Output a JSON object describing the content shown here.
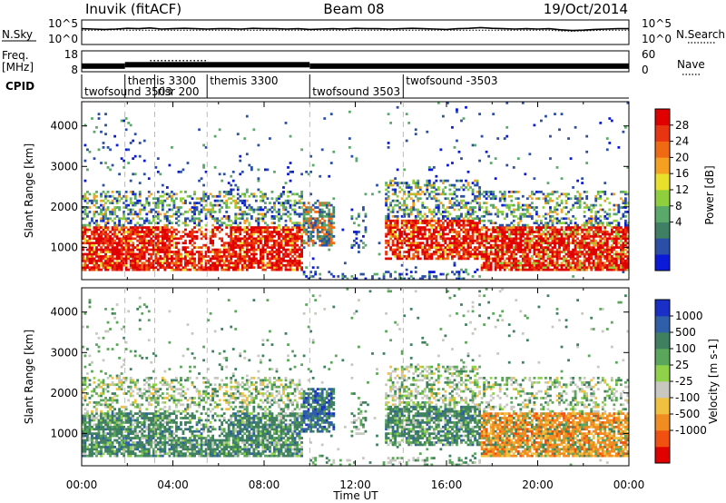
{
  "header": {
    "station": "Inuvik (fitACF)",
    "beam": "Beam 08",
    "date": "19/Oct/2014"
  },
  "chart_data": [
    {
      "type": "line",
      "name": "noise",
      "left_label": "N.Sky",
      "right_label": "N.Search",
      "left_ticks": [
        "10^5",
        "10^0"
      ],
      "right_ticks": [
        "10^5",
        "10^0"
      ],
      "x": [
        0,
        0.5,
        1,
        1.5,
        2,
        2.5,
        3,
        3.5,
        4,
        4.5,
        5,
        5.5,
        6,
        6.5,
        7,
        7.5,
        8,
        8.5,
        9,
        9.5,
        10,
        10.5,
        11,
        11.5,
        12,
        12.5,
        13,
        13.5,
        14,
        14.5,
        15,
        15.5,
        16,
        16.5,
        17,
        17.5,
        18,
        18.5,
        19,
        19.5,
        20,
        20.5,
        21,
        21.5,
        22,
        22.5,
        23,
        23.5,
        24
      ],
      "sky_log": [
        3.6,
        3.5,
        3.4,
        3.5,
        3.7,
        3.6,
        3.8,
        3.5,
        3.6,
        3.7,
        3.6,
        3.5,
        3.6,
        3.6,
        3.5,
        3.7,
        3.6,
        3.6,
        3.5,
        3.6,
        3.4,
        3.5,
        3.6,
        3.5,
        3.7,
        3.6,
        3.6,
        3.5,
        3.6,
        3.7,
        3.6,
        3.5,
        3.4,
        3.6,
        3.7,
        3.9,
        3.7,
        3.6,
        3.5,
        3.6,
        3.5,
        3.6,
        3.3,
        3.1,
        3.2,
        3.4,
        3.5,
        3.6,
        3.6
      ],
      "search_log": [
        3.2,
        3.2,
        3.2,
        3.3,
        3.2,
        3.2,
        3.2,
        3.2,
        3.2,
        3.2,
        3.2,
        3.2,
        3.2,
        3.2,
        3.2,
        3.2,
        3.2,
        3.2,
        3.2,
        3.2,
        3.2,
        3.2,
        3.2,
        3.2,
        3.2,
        3.2,
        3.2,
        3.2,
        3.2,
        3.2,
        3.2,
        3.2,
        3.2,
        3.2,
        3.2,
        3.2,
        3.2,
        3.2,
        3.2,
        3.2,
        3.2,
        3.2,
        3.0,
        2.9,
        3.0,
        3.1,
        3.2,
        3.2,
        3.2
      ]
    },
    {
      "type": "line",
      "name": "frequency",
      "left_label": [
        "Freq.",
        "[MHz]"
      ],
      "right_label": "Nave",
      "left_ticks": [
        "18",
        "8"
      ],
      "right_ticks": [
        "60",
        "0"
      ],
      "ylim_freq": [
        8,
        18
      ],
      "ylim_nave": [
        0,
        60
      ],
      "freq_segments": [
        {
          "x0": 0.0,
          "x1": 1.9,
          "y": 10.5
        },
        {
          "x0": 1.9,
          "x1": 10.0,
          "y": 11.2
        },
        {
          "x0": 10.0,
          "x1": 24.0,
          "y": 10.5
        }
      ],
      "nave_segments": [
        {
          "x0": 3.0,
          "x1": 5.5,
          "y": 32
        }
      ]
    },
    {
      "type": "table",
      "name": "cpid",
      "label": "CPID",
      "modes": [
        {
          "start": 0.0,
          "end": 1.9,
          "label": "twofsound 3503",
          "row": 2
        },
        {
          "start": 1.9,
          "end": 3.2,
          "label": "themis 3300",
          "row": 1
        },
        {
          "start": 3.2,
          "end": 5.5,
          "label": "risr 200",
          "row": 2
        },
        {
          "start": 5.5,
          "end": 10.0,
          "label": "themis 3300",
          "row": 1
        },
        {
          "start": 10.0,
          "end": 14.1,
          "label": "twofsound 3503",
          "row": 2
        },
        {
          "start": 14.1,
          "end": 24.0,
          "label": "twofsound -3503",
          "row": 1
        }
      ]
    },
    {
      "type": "heatmap",
      "name": "power",
      "ylabel": "Slant Range [km]",
      "ylim": [
        200,
        4600
      ],
      "yticks": [
        1000,
        2000,
        3000,
        4000
      ],
      "xlim": [
        0,
        24
      ],
      "colorbar_label": "Power [dB]",
      "colorbar_ticks": [
        "28",
        "24",
        "20",
        "16",
        "12",
        "8",
        "4"
      ],
      "colorbar_colors": [
        "#0a1ad8",
        "#2b4fa6",
        "#3f7f64",
        "#5aa96a",
        "#8fcf3e",
        "#e8e02a",
        "#f5a020",
        "#f06a14",
        "#e83410",
        "#e00000"
      ]
    },
    {
      "type": "heatmap",
      "name": "velocity",
      "ylabel": "Slant Range [km]",
      "ylim": [
        200,
        4600
      ],
      "yticks": [
        1000,
        2000,
        3000,
        4000
      ],
      "xlim": [
        0,
        24
      ],
      "xlabel": "Time UT",
      "xticks": [
        "00:00",
        "04:00",
        "08:00",
        "12:00",
        "16:00",
        "20:00",
        "00:00"
      ],
      "colorbar_label": "Velocity [m s-1]",
      "colorbar_ticks": [
        "1000",
        "500",
        "100",
        "25",
        "-25",
        "-100",
        "-500",
        "-1000"
      ],
      "colorbar_colors": [
        "#1a2fc8",
        "#2f5fa8",
        "#3f8060",
        "#5aa65a",
        "#8fd24a",
        "#c8c8c0",
        "#f0c040",
        "#f08c20",
        "#f05010",
        "#e00000"
      ]
    }
  ]
}
